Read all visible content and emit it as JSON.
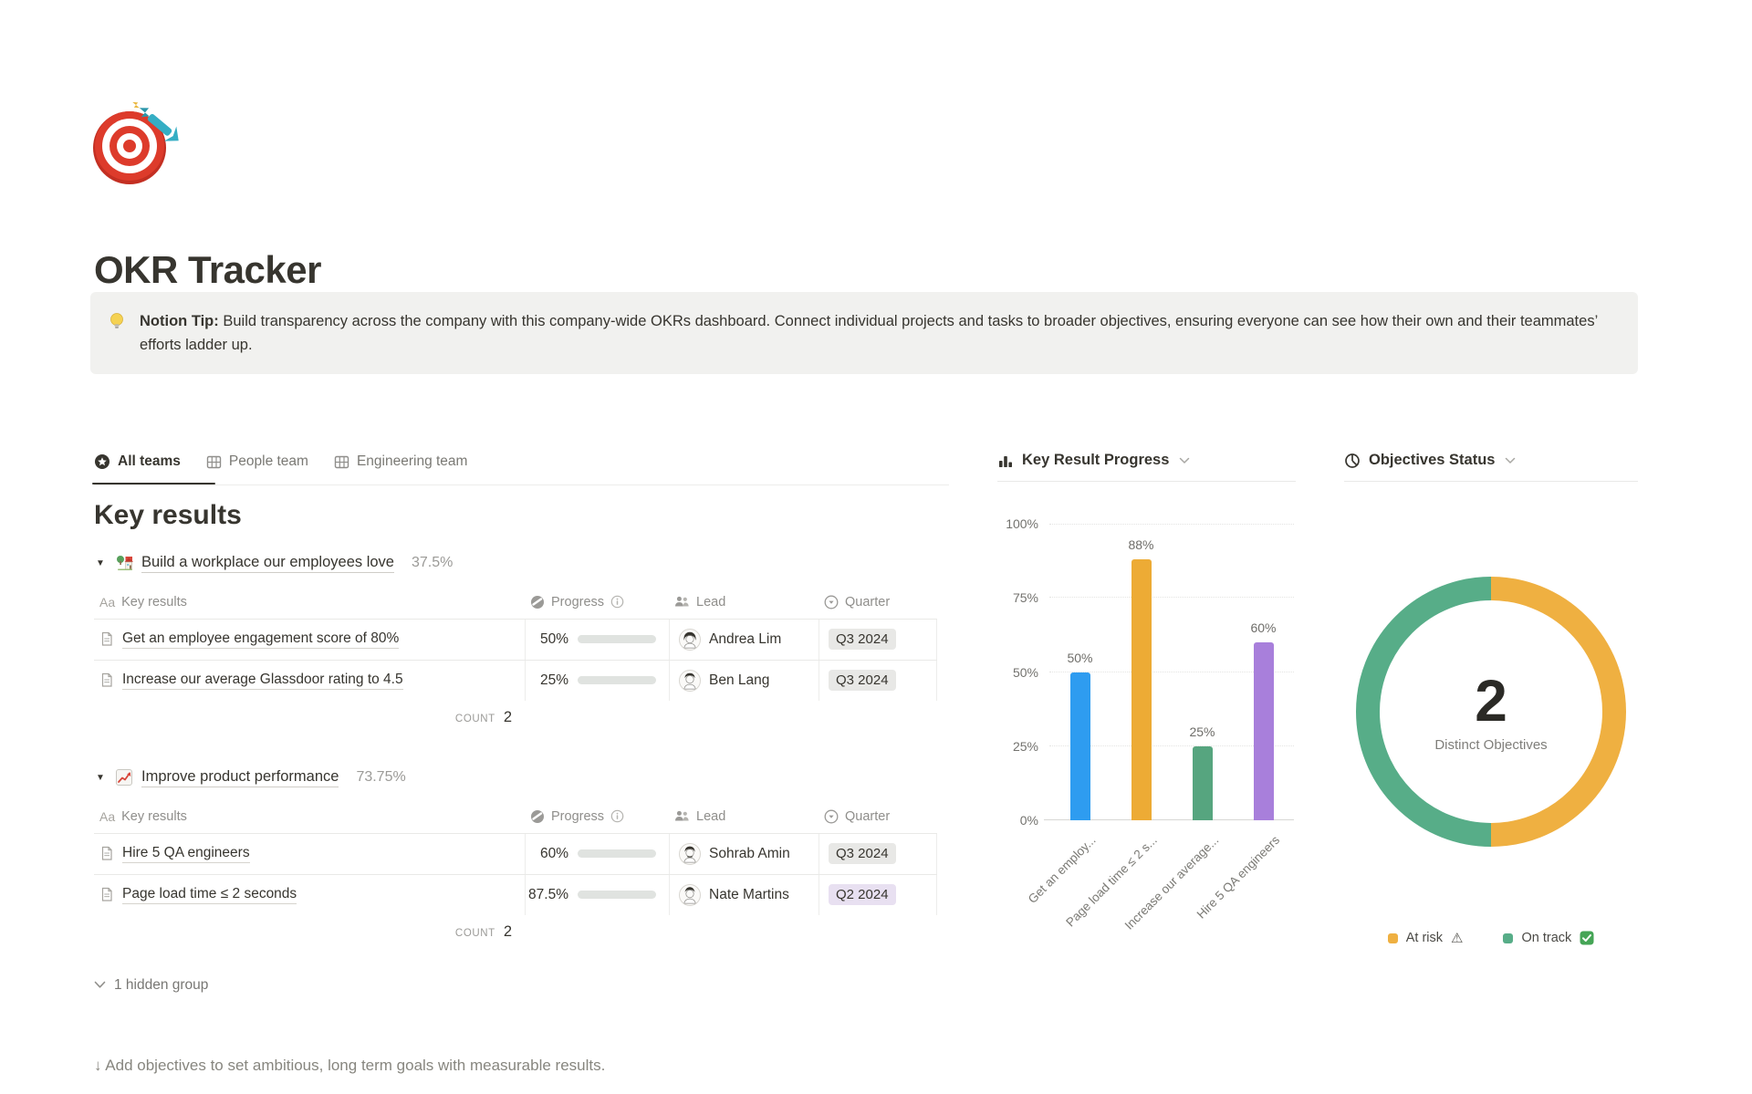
{
  "page": {
    "icon": "target-with-dart",
    "title": "OKR Tracker"
  },
  "callout": {
    "icon": "light-bulb",
    "label": "Notion Tip:",
    "text": "Build transparency across the company with this company-wide OKRs dashboard. Connect individual projects and tasks to broader objectives, ensuring everyone can see how their own and their teammates’ efforts ladder up."
  },
  "tabs": [
    {
      "icon": "star-circle",
      "label": "All teams",
      "active": true
    },
    {
      "icon": "table",
      "label": "People team",
      "active": false
    },
    {
      "icon": "table",
      "label": "Engineering team",
      "active": false
    }
  ],
  "key_results": {
    "heading": "Key results",
    "columns": {
      "name_icon": "Aa",
      "name": "Key results",
      "progress": "Progress",
      "lead": "Lead",
      "quarter": "Quarter"
    },
    "groups": [
      {
        "icon": "house-with-garden",
        "title": "Build a workplace our employees love",
        "percent": "37.5%",
        "rows": [
          {
            "name": "Get an employee engagement score of 80%",
            "progress_label": "50%",
            "progress_value": 50,
            "lead": "Andrea Lim",
            "quarter": "Q3 2024",
            "quarter_tone": "gray"
          },
          {
            "name": "Increase our average Glassdoor rating to 4.5",
            "progress_label": "25%",
            "progress_value": 25,
            "lead": "Ben Lang",
            "quarter": "Q3 2024",
            "quarter_tone": "gray"
          }
        ],
        "count_label": "COUNT",
        "count_value": "2"
      },
      {
        "icon": "chart-increasing",
        "title": "Improve product performance",
        "percent": "73.75%",
        "rows": [
          {
            "name": "Hire 5 QA engineers",
            "progress_label": "60%",
            "progress_value": 60,
            "lead": "Sohrab Amin",
            "quarter": "Q3 2024",
            "quarter_tone": "gray"
          },
          {
            "name": "Page load time ≤ 2 seconds",
            "progress_label": "87.5%",
            "progress_value": 87.5,
            "lead": "Nate Martins",
            "quarter": "Q2 2024",
            "quarter_tone": "purple"
          }
        ],
        "count_label": "COUNT",
        "count_value": "2"
      }
    ],
    "hidden_group_label": "1 hidden group"
  },
  "footer_hint": "↓ Add objectives to set ambitious, long term goals with measurable results.",
  "colors": {
    "progress_fill": "#538A71",
    "progress_track": "#E0E3E0",
    "text_primary": "#37352F",
    "text_secondary": "#787774"
  },
  "icons": {
    "warning": "⚠"
  },
  "chart_data": [
    {
      "type": "bar",
      "title": "Key Result Progress",
      "categories": [
        "Get an employ...",
        "Page load time ≤ 2 s...",
        "Increase our average...",
        "Hire 5 QA engineers"
      ],
      "values": [
        50,
        88,
        25,
        60
      ],
      "value_labels": [
        "50%",
        "88%",
        "25%",
        "60%"
      ],
      "bar_colors": [
        "#2E9CF0",
        "#EDAB35",
        "#56A57F",
        "#A87FDB"
      ],
      "y_ticks": [
        "0%",
        "25%",
        "50%",
        "75%",
        "100%"
      ],
      "ylim": [
        0,
        100
      ],
      "grid": "dotted-horizontal",
      "legend": "none",
      "x_label_rotation": -45
    },
    {
      "type": "pie",
      "donut": true,
      "title": "Objectives Status",
      "center_value": "2",
      "center_label": "Distinct Objectives",
      "slices": [
        {
          "label": "At risk",
          "suffix_icon": "warning",
          "value": 1,
          "percent": 50,
          "color": "#EFB041"
        },
        {
          "label": "On track",
          "suffix_icon": "check-mark-button",
          "value": 1,
          "percent": 50,
          "color": "#57AD88"
        }
      ],
      "legend_position": "bottom"
    }
  ]
}
